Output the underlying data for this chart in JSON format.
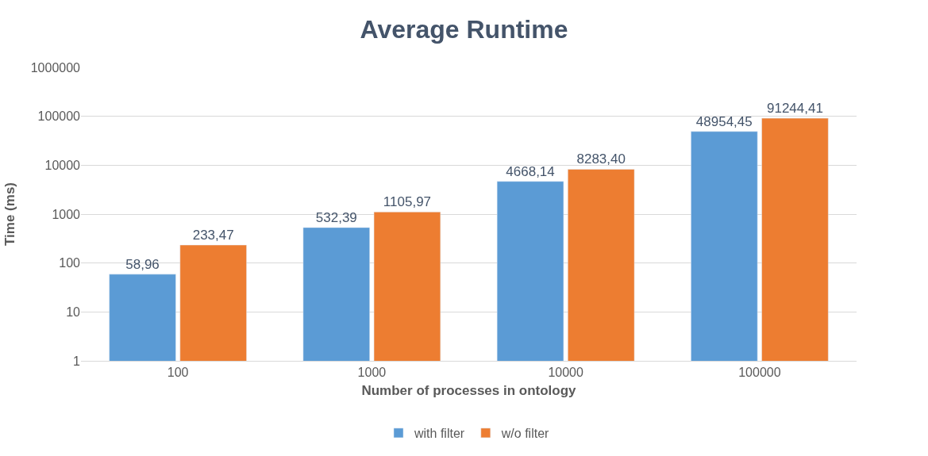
{
  "chart_data": {
    "type": "bar",
    "title": "Average Runtime",
    "xlabel": "Number of processes in ontology",
    "ylabel": "Time (ms)",
    "categories": [
      "100",
      "1000",
      "10000",
      "100000"
    ],
    "series": [
      {
        "name": "with filter",
        "color": "#5b9bd5",
        "values": [
          58.96,
          532.39,
          4668.14,
          48954.45
        ],
        "value_labels": [
          "58,96",
          "532,39",
          "4668,14",
          "48954,45"
        ]
      },
      {
        "name": "w/o filter",
        "color": "#ed7d31",
        "values": [
          233.47,
          1105.97,
          8283.4,
          91244.41
        ],
        "value_labels": [
          "233,47",
          "1105,97",
          "8283,40",
          "91244,41"
        ]
      }
    ],
    "log": "y",
    "ylim": [
      1,
      1000000
    ],
    "yticks": [
      1,
      10,
      100,
      1000,
      10000,
      100000,
      1000000
    ],
    "grid": "y",
    "legend": "bottom"
  }
}
